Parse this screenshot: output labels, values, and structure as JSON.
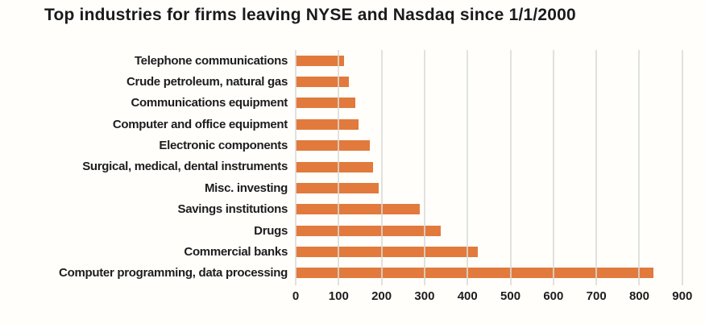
{
  "title": "Top industries for firms leaving NYSE and Nasdaq since 1/1/2000",
  "chart_data": {
    "type": "bar",
    "orientation": "horizontal",
    "title": "Top industries for firms leaving NYSE and Nasdaq since 1/1/2000",
    "categories": [
      "Telephone communications",
      "Crude petroleum, natural gas",
      "Communications equipment",
      "Computer and office equipment",
      "Electronic components",
      "Surgical, medical, dental instruments",
      "Misc. investing",
      "Savings institutions",
      "Drugs",
      "Commercial banks",
      "Computer programming, data processing"
    ],
    "values": [
      112,
      123,
      139,
      146,
      172,
      181,
      194,
      289,
      338,
      424,
      833
    ],
    "xlabel": "",
    "ylabel": "",
    "xlim": [
      0,
      900
    ],
    "x_ticks": [
      0,
      100,
      200,
      300,
      400,
      500,
      600,
      700,
      800,
      900
    ],
    "grid": "vertical-gridlines-over-bars",
    "legend": "none",
    "colors": {
      "bar": "#e17a3c",
      "gridline": "#dbdad6",
      "text": "#1d1d1d",
      "title": "#1b1b1b",
      "background": "#fffefb"
    }
  }
}
